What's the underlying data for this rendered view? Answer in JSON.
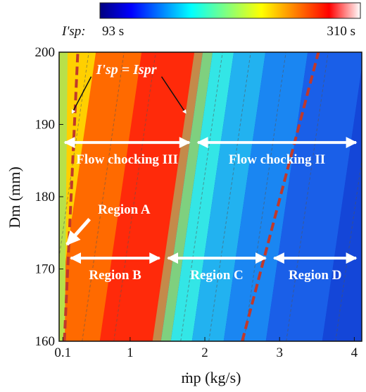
{
  "chart_data": {
    "type": "heatmap",
    "xlabel": "ṁp (kg/s)",
    "ylabel": "Dm (mm)",
    "x_ticks": [
      {
        "value": 0.1,
        "label": "0.1"
      },
      {
        "value": 1,
        "label": "1"
      },
      {
        "value": 2,
        "label": "2"
      },
      {
        "value": 3,
        "label": "3"
      },
      {
        "value": 4,
        "label": "4"
      }
    ],
    "y_ticks": [
      {
        "value": 160,
        "label": "160"
      },
      {
        "value": 170,
        "label": "170"
      },
      {
        "value": 180,
        "label": "180"
      },
      {
        "value": 190,
        "label": "190"
      },
      {
        "value": 200,
        "label": "200"
      }
    ],
    "xlim": [
      0.05,
      4.1
    ],
    "ylim": [
      160,
      200
    ],
    "colorbar": {
      "label": "I'sp:",
      "min": 93,
      "max": 310,
      "min_label": "93 s",
      "max_label": "310 s",
      "colormap": "jet"
    },
    "contour_peak_line": {
      "points": [
        [
          1.3,
          160
        ],
        [
          1.86,
          200
        ]
      ]
    },
    "boundary_lines": [
      {
        "name": "I'sp = Ispr",
        "color": "#c0392b",
        "style": "dashed",
        "points": [
          [
            0.12,
            160
          ],
          [
            0.3,
            200
          ]
        ]
      },
      {
        "name": "I'sp = Ispr",
        "color": "#c0392b",
        "style": "dashed",
        "points": [
          [
            2.5,
            160
          ],
          [
            3.52,
            200
          ]
        ]
      }
    ],
    "equation_annotation": "I'sp = Ispr",
    "region_arrows": [
      {
        "label": "Flow chocking III",
        "x": [
          0.05,
          1.85
        ],
        "y": 187.5
      },
      {
        "label": "Flow chocking II",
        "x": [
          1.85,
          4.1
        ],
        "y": 187.5
      },
      {
        "label": "Region B",
        "x": [
          0.15,
          1.45
        ],
        "y": 171.5
      },
      {
        "label": "Region C",
        "x": [
          1.45,
          2.87
        ],
        "y": 171.5
      },
      {
        "label": "Region D",
        "x": [
          2.87,
          4.1
        ],
        "y": 171.5
      }
    ],
    "region_a": {
      "label": "Region A",
      "point": [
        0.08,
        173
      ]
    },
    "colors": {
      "jet": [
        "#00007f",
        "#0000ff",
        "#007fff",
        "#00ffff",
        "#7fff7f",
        "#ffff00",
        "#ff7f00",
        "#ff0000",
        "#7f0000"
      ],
      "boundary": "#c0392b",
      "arrow": "#ffffff"
    }
  }
}
